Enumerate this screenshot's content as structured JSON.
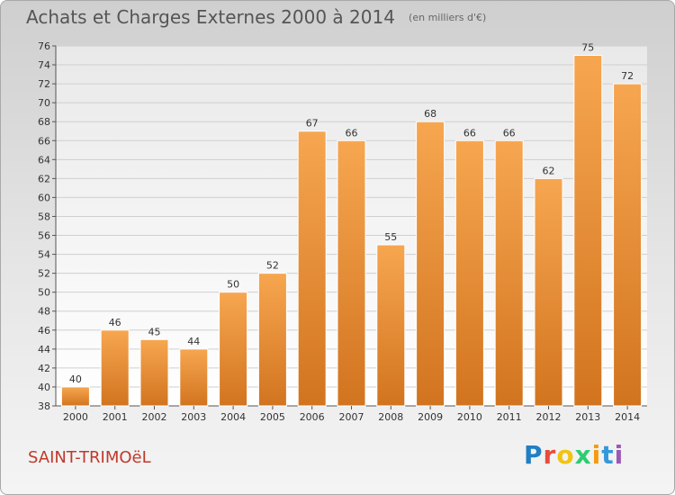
{
  "chart_data": {
    "type": "bar",
    "title": "Achats et Charges Externes 2000 à 2014",
    "unit_label": "(en milliers d'€)",
    "categories": [
      "2000",
      "2001",
      "2002",
      "2003",
      "2004",
      "2005",
      "2006",
      "2007",
      "2008",
      "2009",
      "2010",
      "2011",
      "2012",
      "2013",
      "2014"
    ],
    "values": [
      40,
      46,
      45,
      44,
      50,
      52,
      67,
      66,
      55,
      68,
      66,
      66,
      62,
      75,
      72
    ],
    "ylim": [
      38,
      76
    ],
    "yticks": [
      38,
      40,
      42,
      44,
      46,
      48,
      50,
      52,
      54,
      56,
      58,
      60,
      62,
      64,
      66,
      68,
      70,
      72,
      74,
      76
    ],
    "grid": true,
    "bar_color": "#f0953a"
  },
  "commune": "SAINT-TRIMOëL",
  "logo": {
    "text": "Proxiti",
    "letter_colors": [
      "#1e7fc4",
      "#e74c3c",
      "#f1c40f",
      "#2ecc71",
      "#f39c12",
      "#3498db",
      "#9b59b6"
    ]
  }
}
